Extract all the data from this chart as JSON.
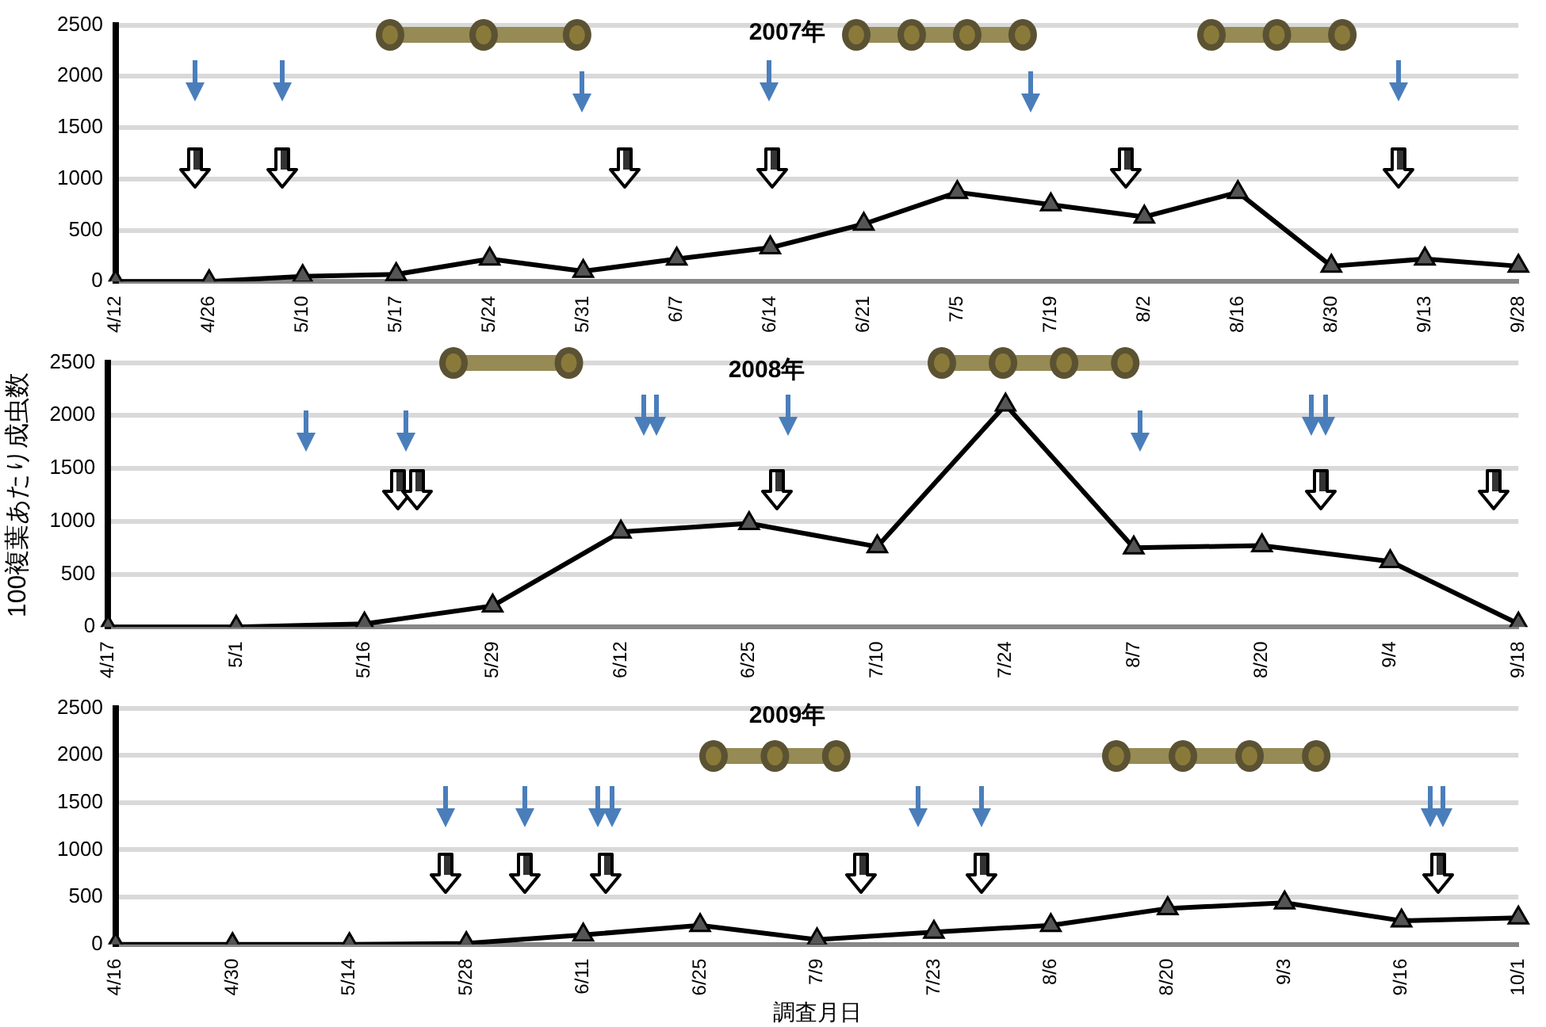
{
  "chart_data": [
    {
      "type": "line",
      "title": "2007年",
      "categories": [
        "4/12",
        "4/26",
        "5/10",
        "5/17",
        "5/24",
        "5/31",
        "6/7",
        "6/14",
        "6/21",
        "7/5",
        "7/19",
        "8/2",
        "8/16",
        "8/30",
        "9/13",
        "9/28"
      ],
      "values": [
        0,
        0,
        50,
        70,
        220,
        100,
        220,
        330,
        560,
        870,
        750,
        630,
        870,
        150,
        220,
        150
      ],
      "color": "#000000",
      "ylim": [
        0,
        2500
      ],
      "yticks": [
        0,
        500,
        1000,
        1500,
        2000,
        2500
      ],
      "grid": "y",
      "marker": "triangle",
      "legend": false
    },
    {
      "type": "line",
      "title": "2008年",
      "ylabel": "100複葉あたり成虫数",
      "categories": [
        "4/17",
        "5/1",
        "5/16",
        "5/29",
        "6/12",
        "6/25",
        "7/10",
        "7/24",
        "8/7",
        "8/20",
        "9/4",
        "9/18"
      ],
      "values": [
        0,
        0,
        30,
        200,
        900,
        980,
        760,
        2100,
        750,
        770,
        620,
        30
      ],
      "color": "#000000",
      "ylim": [
        0,
        2500
      ],
      "yticks": [
        0,
        500,
        1000,
        1500,
        2000,
        2500
      ],
      "grid": "y",
      "marker": "triangle",
      "legend": false
    },
    {
      "type": "line",
      "title": "2009年",
      "xlabel": "調査月日",
      "categories": [
        "4/16",
        "4/30",
        "5/14",
        "5/28",
        "6/11",
        "6/25",
        "7/9",
        "7/23",
        "8/6",
        "8/20",
        "9/3",
        "9/16",
        "10/1"
      ],
      "values": [
        0,
        0,
        0,
        10,
        100,
        200,
        50,
        130,
        200,
        380,
        440,
        250,
        280
      ],
      "color": "#000000",
      "ylim": [
        0,
        2500
      ],
      "yticks": [
        0,
        500,
        1000,
        1500,
        2000,
        2500
      ],
      "grid": "y",
      "marker": "triangle",
      "legend": false
    }
  ]
}
